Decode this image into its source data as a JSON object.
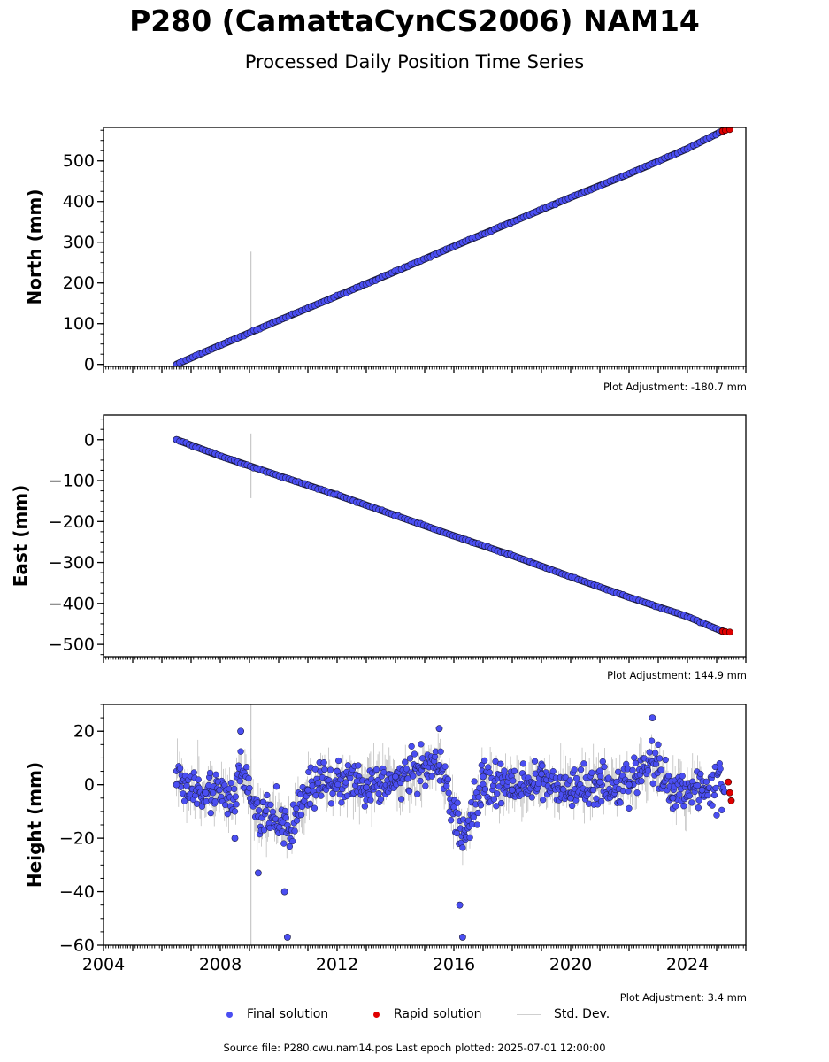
{
  "header": {
    "title": "P280 (CamattaCynCS2006) NAM14",
    "subtitle": "Processed Daily Position Time Series"
  },
  "legend": {
    "final_label": "Final solution",
    "rapid_label": "Rapid solution",
    "std_label": "Std. Dev."
  },
  "colors": {
    "final": "#4a4ef2",
    "final_edge": "#1a1a40",
    "rapid": "#e00000",
    "std_dev": "#b0b0b0"
  },
  "footer": {
    "source": "Source file: P280.cwu.nam14.pos  Last epoch plotted: 2025-07-01 12:00:00"
  },
  "chart_data": [
    {
      "type": "scatter",
      "ylabel": "North (mm)",
      "adjustment": "Plot Adjustment: -180.7 mm",
      "xlim": [
        2004,
        2026
      ],
      "ylim": [
        -5,
        582
      ],
      "yticks": [
        0,
        100,
        200,
        300,
        400,
        500
      ],
      "ytick_labels": [
        "0",
        "100",
        "200",
        "300",
        "400",
        "500"
      ],
      "series": [
        {
          "name": "Final solution",
          "x": [
            2006.5,
            2008,
            2010,
            2012,
            2014,
            2016,
            2018,
            2020,
            2022,
            2024,
            2025.2
          ],
          "y": [
            0,
            47,
            108,
            168,
            228,
            290,
            350,
            410,
            468,
            530,
            573
          ]
        },
        {
          "name": "Rapid solution",
          "x": [
            2025.2,
            2025.3,
            2025.45
          ],
          "y": [
            573,
            575,
            577
          ]
        }
      ],
      "std_dev_spike": {
        "x": 2009.05,
        "y_range": [
          78,
          277
        ]
      }
    },
    {
      "type": "scatter",
      "ylabel": "East (mm)",
      "adjustment": "Plot Adjustment: 144.9 mm",
      "xlim": [
        2004,
        2026
      ],
      "ylim": [
        -530,
        60
      ],
      "yticks": [
        0,
        -100,
        -200,
        -300,
        -400,
        -500
      ],
      "ytick_labels": [
        "0",
        "−100",
        "−200",
        "−300",
        "−400",
        "−500"
      ],
      "series": [
        {
          "name": "Final solution",
          "x": [
            2006.5,
            2008,
            2010,
            2012,
            2014,
            2016,
            2018,
            2020,
            2022,
            2024,
            2025.2
          ],
          "y": [
            0,
            -40,
            -88,
            -135,
            -185,
            -235,
            -283,
            -335,
            -385,
            -432,
            -468
          ]
        },
        {
          "name": "Rapid solution",
          "x": [
            2025.2,
            2025.3,
            2025.45
          ],
          "y": [
            -468,
            -469,
            -470
          ]
        }
      ],
      "std_dev_spike": {
        "x": 2009.05,
        "y_range": [
          -143,
          15
        ]
      }
    },
    {
      "type": "scatter",
      "ylabel": "Height (mm)",
      "adjustment": "Plot Adjustment: 3.4 mm",
      "xlim": [
        2004,
        2026
      ],
      "ylim": [
        -60,
        30
      ],
      "yticks": [
        20,
        0,
        -20,
        -40,
        -60
      ],
      "ytick_labels": [
        "20",
        "0",
        "−20",
        "−40",
        "−60"
      ],
      "xticks": [
        2004,
        2008,
        2012,
        2016,
        2020,
        2024
      ],
      "xtick_labels": [
        "2004",
        "2008",
        "2012",
        "2016",
        "2020",
        "2024"
      ],
      "series": [
        {
          "name": "Final solution",
          "x": [
            2006.5,
            2007.5,
            2008.5,
            2008.7,
            2009.3,
            2010.2,
            2010.3,
            2011,
            2012,
            2013,
            2014,
            2015.5,
            2016.2,
            2016.3,
            2017,
            2018,
            2019,
            2020,
            2021,
            2022,
            2022.8,
            2023.5,
            2024.5
          ],
          "y": [
            0,
            -3,
            -20,
            20,
            -33,
            -40,
            -57,
            -2,
            5,
            -1,
            3,
            21,
            -45,
            -57,
            3,
            -2,
            4,
            -5,
            1,
            0,
            25,
            -5,
            -2
          ]
        },
        {
          "name": "Rapid solution",
          "x": [
            2025.4,
            2025.45,
            2025.5
          ],
          "y": [
            1,
            -3,
            -6
          ]
        }
      ],
      "std_dev_spike": {
        "x": 2009.05,
        "y_range": [
          -60,
          30
        ]
      }
    }
  ]
}
